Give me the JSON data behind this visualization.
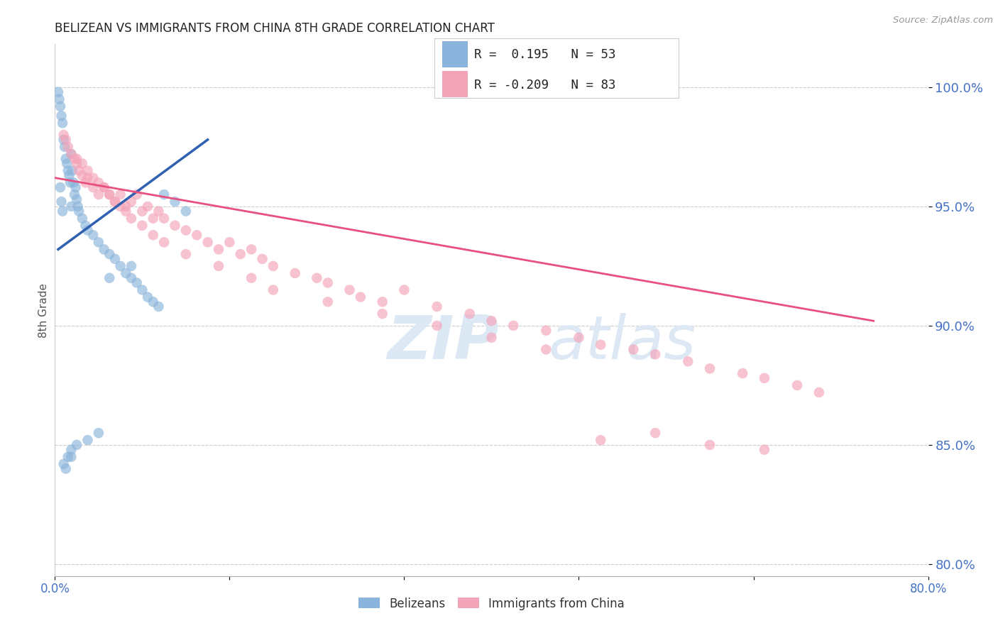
{
  "title": "BELIZEAN VS IMMIGRANTS FROM CHINA 8TH GRADE CORRELATION CHART",
  "source": "Source: ZipAtlas.com",
  "ylabel": "8th Grade",
  "y_ticks": [
    80.0,
    85.0,
    90.0,
    95.0,
    100.0
  ],
  "x_min": 0.0,
  "x_max": 80.0,
  "y_min": 79.5,
  "y_max": 101.8,
  "legend_blue_r": "0.195",
  "legend_blue_n": "53",
  "legend_pink_r": "-0.209",
  "legend_pink_n": "83",
  "blue_color": "#8ab4db",
  "pink_color": "#f4a4b8",
  "blue_line_color": "#3060b0",
  "pink_line_color": "#e85080",
  "watermark_zip": "ZIP",
  "watermark_atlas": "atlas",
  "watermark_color": "#dde8f5",
  "blue_line_x": [
    0.3,
    14.0
  ],
  "blue_line_y": [
    93.2,
    97.8
  ],
  "pink_line_x": [
    0.0,
    75.0
  ],
  "pink_line_y": [
    96.2,
    90.2
  ],
  "blue_x": [
    0.3,
    0.4,
    0.5,
    0.6,
    0.7,
    0.8,
    0.9,
    1.0,
    1.1,
    1.2,
    1.3,
    1.4,
    1.5,
    1.6,
    1.7,
    1.8,
    1.9,
    2.0,
    2.1,
    2.2,
    2.5,
    2.8,
    3.0,
    3.5,
    4.0,
    4.5,
    5.0,
    5.5,
    6.0,
    6.5,
    7.0,
    7.5,
    8.0,
    8.5,
    9.0,
    9.5,
    10.0,
    11.0,
    12.0,
    1.5,
    1.5,
    0.5,
    0.6,
    0.7,
    0.8,
    1.0,
    1.2,
    1.5,
    2.0,
    3.0,
    4.0,
    5.0,
    7.0
  ],
  "blue_y": [
    99.8,
    99.5,
    99.2,
    98.8,
    98.5,
    97.8,
    97.5,
    97.0,
    96.8,
    96.5,
    96.3,
    96.0,
    97.2,
    96.5,
    96.0,
    95.5,
    95.8,
    95.3,
    95.0,
    94.8,
    94.5,
    94.2,
    94.0,
    93.8,
    93.5,
    93.2,
    93.0,
    92.8,
    92.5,
    92.2,
    92.0,
    91.8,
    91.5,
    91.2,
    91.0,
    90.8,
    95.5,
    95.2,
    94.8,
    95.0,
    84.5,
    95.8,
    95.2,
    94.8,
    84.2,
    84.0,
    84.5,
    84.8,
    85.0,
    85.2,
    85.5,
    92.0,
    92.5
  ],
  "pink_x": [
    0.8,
    1.0,
    1.2,
    1.5,
    1.8,
    2.0,
    2.2,
    2.5,
    2.8,
    3.0,
    3.5,
    4.0,
    4.5,
    5.0,
    5.5,
    6.0,
    6.5,
    7.0,
    7.5,
    8.0,
    8.5,
    9.0,
    9.5,
    10.0,
    11.0,
    12.0,
    13.0,
    14.0,
    15.0,
    16.0,
    17.0,
    18.0,
    19.0,
    20.0,
    22.0,
    24.0,
    25.0,
    27.0,
    28.0,
    30.0,
    32.0,
    35.0,
    38.0,
    40.0,
    42.0,
    45.0,
    48.0,
    50.0,
    53.0,
    55.0,
    58.0,
    60.0,
    63.0,
    65.0,
    68.0,
    70.0,
    2.0,
    2.5,
    3.0,
    3.5,
    4.0,
    4.5,
    5.0,
    5.5,
    6.0,
    6.5,
    7.0,
    8.0,
    9.0,
    10.0,
    12.0,
    15.0,
    18.0,
    20.0,
    25.0,
    30.0,
    35.0,
    40.0,
    45.0,
    50.0,
    55.0,
    60.0,
    65.0
  ],
  "pink_y": [
    98.0,
    97.8,
    97.5,
    97.2,
    97.0,
    96.8,
    96.5,
    96.3,
    96.0,
    96.2,
    95.8,
    95.5,
    95.8,
    95.5,
    95.2,
    95.5,
    95.0,
    95.2,
    95.5,
    94.8,
    95.0,
    94.5,
    94.8,
    94.5,
    94.2,
    94.0,
    93.8,
    93.5,
    93.2,
    93.5,
    93.0,
    93.2,
    92.8,
    92.5,
    92.2,
    92.0,
    91.8,
    91.5,
    91.2,
    91.0,
    91.5,
    90.8,
    90.5,
    90.2,
    90.0,
    89.8,
    89.5,
    89.2,
    89.0,
    88.8,
    88.5,
    88.2,
    88.0,
    87.8,
    87.5,
    87.2,
    97.0,
    96.8,
    96.5,
    96.2,
    96.0,
    95.8,
    95.5,
    95.2,
    95.0,
    94.8,
    94.5,
    94.2,
    93.8,
    93.5,
    93.0,
    92.5,
    92.0,
    91.5,
    91.0,
    90.5,
    90.0,
    89.5,
    89.0,
    85.2,
    85.5,
    85.0,
    84.8
  ]
}
